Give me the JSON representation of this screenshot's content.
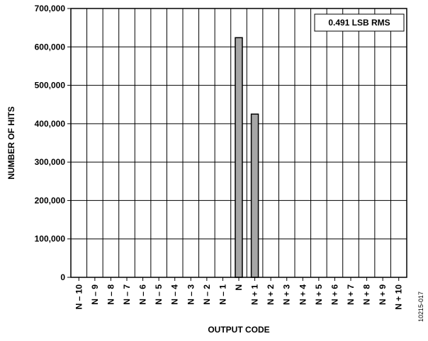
{
  "chart_data": {
    "type": "bar",
    "categories": [
      "N – 10",
      "N – 9",
      "N – 8",
      "N – 7",
      "N – 6",
      "N – 5",
      "N – 4",
      "N – 3",
      "N – 2",
      "N – 1",
      "N",
      "N + 1",
      "N + 2",
      "N + 3",
      "N + 4",
      "N + 5",
      "N + 6",
      "N + 7",
      "N + 8",
      "N + 9",
      "N + 10"
    ],
    "values": [
      0,
      0,
      0,
      0,
      0,
      0,
      0,
      0,
      0,
      0,
      624000,
      425000,
      0,
      0,
      0,
      0,
      0,
      0,
      0,
      0,
      0
    ],
    "xlabel": "OUTPUT CODE",
    "ylabel": "NUMBER OF HITS",
    "ylim": [
      0,
      700000
    ],
    "yticks": [
      "0",
      "100,000",
      "200,000",
      "300,000",
      "400,000",
      "500,000",
      "600,000",
      "700,000"
    ],
    "annotation": "0.491 LSB RMS",
    "grid": true,
    "bar_color": "#a6a6a6"
  },
  "figure_id": "10215-017"
}
